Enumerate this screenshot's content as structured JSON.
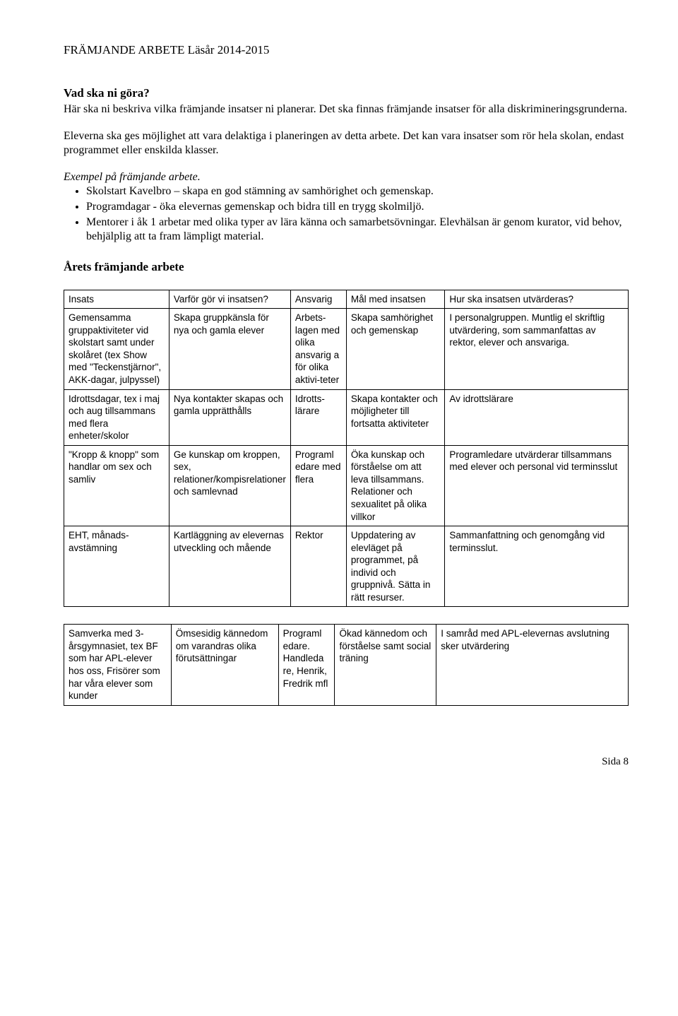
{
  "title": "FRÄMJANDE ARBETE Läsår 2014-2015",
  "q_heading": "Vad ska ni göra?",
  "intro_p1": "Här ska ni beskriva vilka främjande insatser ni planerar. Det ska finnas främjande insatser för alla diskrimineringsgrunderna.",
  "intro_p2": "Eleverna ska ges möjlighet att vara delaktiga i planeringen av detta arbete. Det kan vara insatser som rör hela skolan, endast programmet eller enskilda klasser.",
  "example_heading": "Exempel på främjande arbete.",
  "bullets": [
    "Skolstart Kavelbro – skapa en god stämning av samhörighet och gemenskap.",
    "Programdagar - öka elevernas gemenskap och bidra till en trygg skolmiljö.",
    "Mentorer i åk 1 arbetar med olika typer av lära känna och samarbetsövningar. Elevhälsan är genom kurator, vid behov, behjälplig att ta fram lämpligt material."
  ],
  "section_heading": "Årets främjande arbete",
  "table1": {
    "headers": [
      "Insats",
      "Varför gör vi insatsen?",
      "Ansvarig",
      "Mål med insatsen",
      "Hur ska insatsen utvärderas?"
    ],
    "rows": [
      [
        "Gemensamma gruppaktiviteter vid skolstart samt under skolåret (tex Show med \"Teckenstjärnor\", AKK-dagar, julpyssel)",
        "Skapa gruppkänsla för nya och gamla elever",
        "Arbets-lagen med olika ansvarig a för olika aktivi-teter",
        "Skapa samhörighet och gemenskap",
        "I personalgruppen. Muntlig el skriftlig utvärdering, som sammanfattas av rektor, elever och ansvariga."
      ],
      [
        "Idrottsdagar, tex i maj och aug tillsammans med flera enheter/skolor",
        "Nya kontakter skapas och gamla upprätthålls",
        "Idrotts-lärare",
        "Skapa kontakter och möjligheter till fortsatta aktiviteter",
        "Av idrottslärare"
      ],
      [
        "\"Kropp & knopp\" som handlar om sex och samliv",
        "Ge kunskap om kroppen, sex, relationer/kompisrelationer och samlevnad",
        "Programl edare med flera",
        "Öka kunskap och förståelse om att leva tillsammans. Relationer och sexualitet på olika villkor",
        "Programledare utvärderar tillsammans med elever och personal vid terminsslut"
      ],
      [
        "EHT, månads-avstämning",
        "Kartläggning av elevernas utveckling och mående",
        "Rektor",
        "Uppdatering av elevläget på programmet, på individ och gruppnivå. Sätta in rätt resurser.",
        "Sammanfattning och genomgång vid terminsslut."
      ]
    ]
  },
  "table2": {
    "rows": [
      [
        "Samverka med 3-årsgymnasiet, tex BF som har APL-elever hos oss, Frisörer som har våra elever som kunder",
        "Ömsesidig kännedom om varandras olika förutsättningar",
        "Programl edare. Handleda re, Henrik, Fredrik mfl",
        "Ökad kännedom och förståelse samt social träning",
        "I samråd med APL-elevernas avslutning sker utvärdering"
      ]
    ]
  },
  "footer": "Sida 8"
}
